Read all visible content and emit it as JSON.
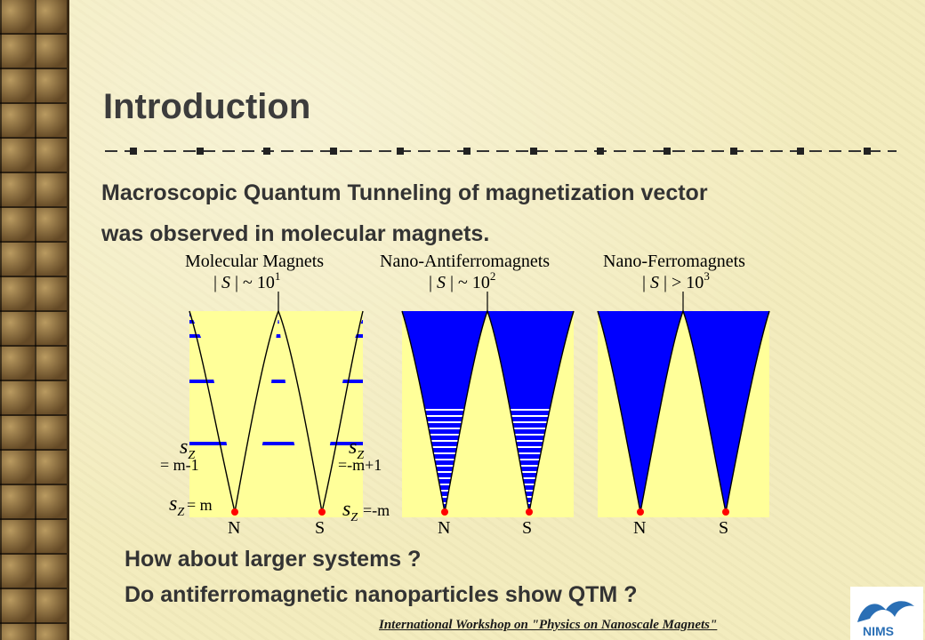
{
  "slide": {
    "title": "Introduction",
    "body_line1": "Macroscopic Quantum Tunneling of magnetization vector",
    "body_line2": "was observed in molecular magnets.",
    "question1": "How about larger systems ?",
    "question2": "Do antiferromagnetic nanoparticles show QTM ?",
    "footer": "International Workshop on \"Physics on Nanoscale Magnets\""
  },
  "diagram": {
    "panels": [
      {
        "title": "Molecular Magnets",
        "spin_rel": "~ 10",
        "spin_exp": "1"
      },
      {
        "title": "Nano-Antiferromagnets",
        "spin_rel": "~ 10",
        "spin_exp": "2"
      },
      {
        "title": "Nano-Ferromagnets",
        "spin_rel": "> 10",
        "spin_exp": "3"
      }
    ],
    "spin_symbol": "S",
    "pole_north": "N",
    "pole_south": "S",
    "sz_symbol": "s",
    "sz_subscript": "Z",
    "label_left_upper": "= m-1",
    "label_right_upper": "=-m+1",
    "label_left_lower": "= m",
    "label_right_lower": "=-m",
    "colors": {
      "well_fill": "#ffff99",
      "level_blue": "#0000ff",
      "ground_red": "#ff0000"
    }
  },
  "logo": {
    "text": "NIMS",
    "icon": "nims-logo-icon"
  }
}
